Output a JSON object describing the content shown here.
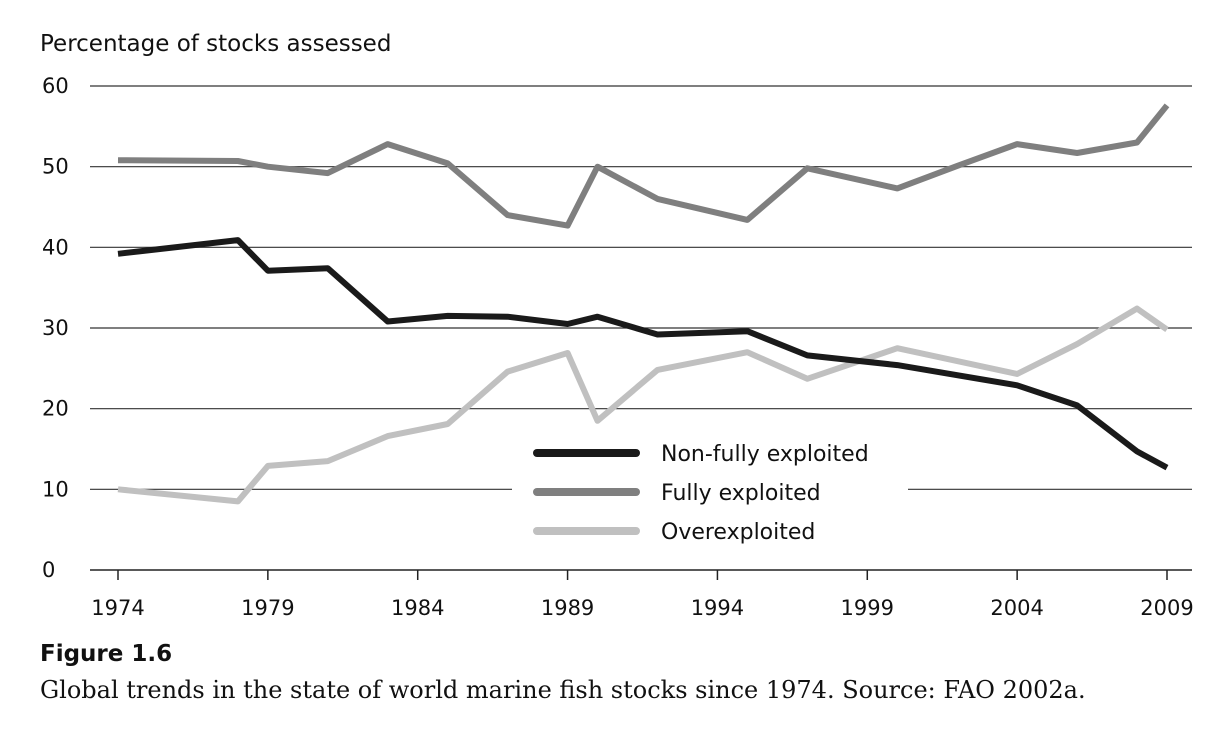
{
  "figure": {
    "label": "Figure 1.6",
    "caption": "Global trends in the state of world marine fish stocks since 1974. Source: FAO 2002a."
  },
  "chart_data": {
    "type": "line",
    "title": "",
    "xlabel": "",
    "ylabel": "Percentage of stocks assessed",
    "xlim": [
      1974,
      2009
    ],
    "ylim": [
      0,
      60
    ],
    "x_ticks": [
      "1974",
      "1979",
      "1984",
      "1989",
      "1994",
      "1999",
      "2004",
      "2009"
    ],
    "x_tick_values": [
      1974,
      1979,
      1984,
      1989,
      1994,
      1999,
      2004,
      2009
    ],
    "y_ticks": [
      "0",
      "10",
      "20",
      "30",
      "40",
      "50",
      "60"
    ],
    "y_tick_values": [
      0,
      10,
      20,
      30,
      40,
      50,
      60
    ],
    "grid": "horizontal",
    "legend_position": "center-bottom",
    "series": [
      {
        "name": "Non-fully exploited",
        "color": "#1a1a1a",
        "x": [
          1974,
          1978,
          1979,
          1981,
          1983,
          1985,
          1987,
          1989,
          1990,
          1992,
          1995,
          1997,
          2000,
          2004,
          2006,
          2008,
          2009
        ],
        "y": [
          39.2,
          40.9,
          37.1,
          37.4,
          30.8,
          31.5,
          31.4,
          30.5,
          31.4,
          29.2,
          29.6,
          26.6,
          25.4,
          22.9,
          20.4,
          14.7,
          12.7
        ]
      },
      {
        "name": "Fully exploited",
        "color": "#7f7f7f",
        "x": [
          1974,
          1978,
          1979,
          1981,
          1983,
          1985,
          1987,
          1989,
          1990,
          1992,
          1995,
          1997,
          2000,
          2002,
          2004,
          2006,
          2008,
          2009
        ],
        "y": [
          50.8,
          50.7,
          50.0,
          49.2,
          52.8,
          50.4,
          44.0,
          42.7,
          50.0,
          46.0,
          43.4,
          49.8,
          47.3,
          50.1,
          52.8,
          51.7,
          53.0,
          57.6
        ]
      },
      {
        "name": "Overexploited",
        "color": "#c0c0c0",
        "x": [
          1974,
          1978,
          1979,
          1981,
          1983,
          1985,
          1987,
          1989,
          1990,
          1992,
          1995,
          1997,
          2000,
          2004,
          2006,
          2008,
          2009
        ],
        "y": [
          10.0,
          8.5,
          12.9,
          13.5,
          16.6,
          18.1,
          24.6,
          26.9,
          18.5,
          24.8,
          27.0,
          23.7,
          27.5,
          24.3,
          28.0,
          32.4,
          29.8
        ]
      }
    ]
  }
}
